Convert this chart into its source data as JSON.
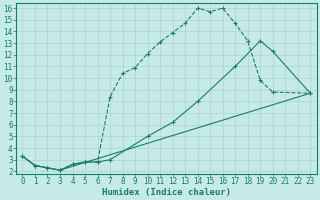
{
  "bg_color": "#c6ebe6",
  "grid_color": "#b0d8d2",
  "line_color": "#1a7a6e",
  "xlabel": "Humidex (Indice chaleur)",
  "xlim": [
    -0.5,
    23.5
  ],
  "ylim": [
    1.8,
    16.4
  ],
  "xticks": [
    0,
    1,
    2,
    3,
    4,
    5,
    6,
    7,
    8,
    9,
    10,
    11,
    12,
    13,
    14,
    15,
    16,
    17,
    18,
    19,
    20,
    21,
    22,
    23
  ],
  "yticks": [
    2,
    3,
    4,
    5,
    6,
    7,
    8,
    9,
    10,
    11,
    12,
    13,
    14,
    15,
    16
  ],
  "curve1_x": [
    0,
    1,
    2,
    3,
    4,
    5,
    6,
    7,
    8,
    9,
    10,
    11,
    12,
    13,
    14,
    15,
    16,
    17,
    18,
    19,
    20,
    23
  ],
  "curve1_y": [
    3.3,
    2.5,
    2.3,
    2.1,
    2.6,
    2.8,
    2.8,
    8.4,
    10.4,
    10.9,
    12.1,
    13.1,
    13.9,
    14.7,
    16.0,
    15.7,
    16.0,
    14.7,
    13.2,
    9.8,
    8.8,
    8.7
  ],
  "curve2_x": [
    0,
    1,
    2,
    3,
    4,
    5,
    6,
    7,
    10,
    12,
    14,
    17,
    19,
    20,
    23
  ],
  "curve2_y": [
    3.3,
    2.5,
    2.3,
    2.1,
    2.6,
    2.8,
    2.8,
    3.0,
    5.0,
    6.2,
    8.0,
    11.0,
    13.2,
    12.3,
    8.7
  ],
  "curve3_x": [
    0,
    1,
    2,
    3,
    23
  ],
  "curve3_y": [
    3.3,
    2.5,
    2.3,
    2.1,
    8.7
  ],
  "figsize": [
    3.2,
    2.0
  ],
  "dpi": 100,
  "tick_fontsize": 5.5,
  "label_fontsize": 6.5
}
